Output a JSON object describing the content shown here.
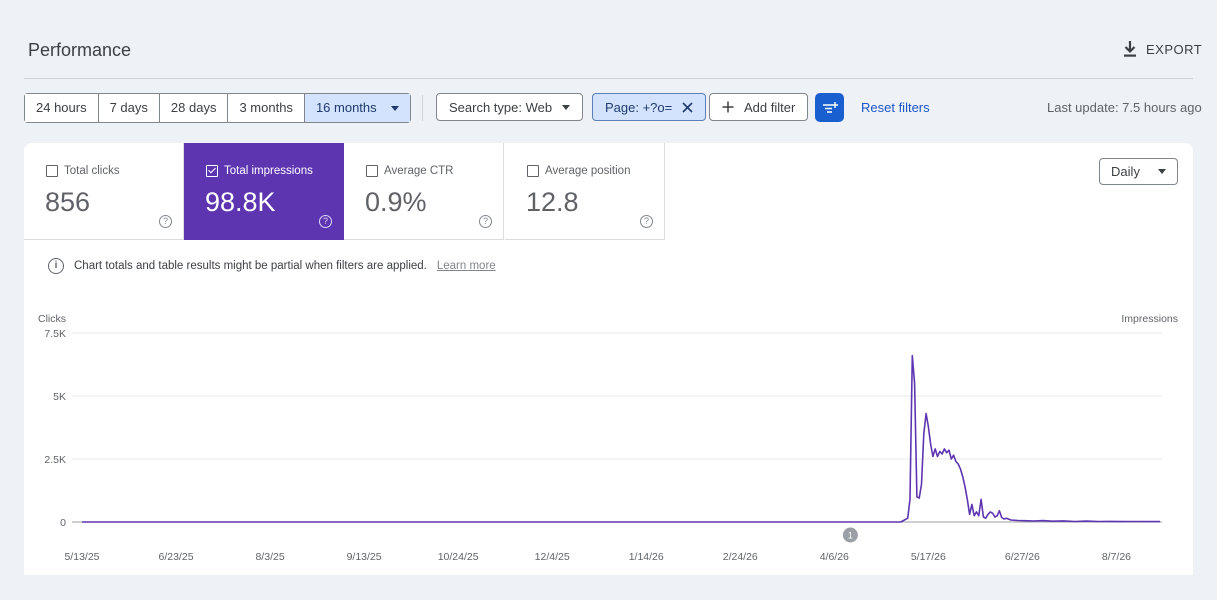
{
  "header": {
    "title": "Performance",
    "export_label": "EXPORT"
  },
  "date_ranges": [
    {
      "label": "24 hours",
      "active": false
    },
    {
      "label": "7 days",
      "active": false
    },
    {
      "label": "28 days",
      "active": false
    },
    {
      "label": "3 months",
      "active": false
    },
    {
      "label": "16 months",
      "active": true
    }
  ],
  "filters": {
    "search_type": "Search type: Web",
    "page": "Page: +?o=",
    "add_filter": "Add filter",
    "reset": "Reset filters",
    "last_update": "Last update: 7.5 hours ago"
  },
  "metrics": [
    {
      "label": "Total clicks",
      "value": "856",
      "checked": false
    },
    {
      "label": "Total impressions",
      "value": "98.8K",
      "checked": true
    },
    {
      "label": "Average CTR",
      "value": "0.9%",
      "checked": false
    },
    {
      "label": "Average position",
      "value": "12.8",
      "checked": false
    }
  ],
  "granularity": "Daily",
  "notice": {
    "text": "Chart totals and table results might be partial when filters are applied.",
    "link": "Learn more"
  },
  "colors": {
    "accent": "#5e35b1",
    "brand_blue": "#1a5fd0",
    "selected_chip": "#d3e3fd"
  },
  "chart_data": {
    "type": "line",
    "left_axis_label": "Clicks",
    "right_axis_label": "Impressions",
    "y_ticks": [
      "0",
      "2.5K",
      "5K",
      "7.5K"
    ],
    "ylim": [
      0,
      7500
    ],
    "x_ticks": [
      "5/13/25",
      "6/23/25",
      "8/3/25",
      "9/13/25",
      "10/24/25",
      "12/4/25",
      "1/14/26",
      "2/24/26",
      "4/6/26",
      "5/17/26",
      "6/27/26",
      "8/7/26"
    ],
    "x_start": "5/13/25",
    "x_end": "8/26/26",
    "annotation": {
      "date": "4/13/26",
      "label": "1"
    },
    "series": [
      {
        "color": "#5e35b1",
        "points": [
          [
            "5/13/25",
            0
          ],
          [
            "5/5/26",
            0
          ],
          [
            "5/8/26",
            150
          ],
          [
            "5/9/26",
            900
          ],
          [
            "5/10/26",
            6600
          ],
          [
            "5/11/26",
            5500
          ],
          [
            "5/12/26",
            1000
          ],
          [
            "5/13/26",
            950
          ],
          [
            "5/14/26",
            1500
          ],
          [
            "5/15/26",
            3500
          ],
          [
            "5/16/26",
            4300
          ],
          [
            "5/17/26",
            3800
          ],
          [
            "5/18/26",
            3100
          ],
          [
            "5/19/26",
            2600
          ],
          [
            "5/20/26",
            2900
          ],
          [
            "5/21/26",
            2600
          ],
          [
            "5/22/26",
            2800
          ],
          [
            "5/23/26",
            2700
          ],
          [
            "5/24/26",
            2900
          ],
          [
            "5/25/26",
            2750
          ],
          [
            "5/26/26",
            2850
          ],
          [
            "5/27/26",
            2500
          ],
          [
            "5/28/26",
            2650
          ],
          [
            "5/29/26",
            2400
          ],
          [
            "5/30/26",
            2300
          ],
          [
            "5/31/26",
            2100
          ],
          [
            "6/1/26",
            1800
          ],
          [
            "6/2/26",
            1400
          ],
          [
            "6/3/26",
            900
          ],
          [
            "6/4/26",
            300
          ],
          [
            "6/5/26",
            700
          ],
          [
            "6/6/26",
            250
          ],
          [
            "6/7/26",
            400
          ],
          [
            "6/8/26",
            250
          ],
          [
            "6/9/26",
            900
          ],
          [
            "6/10/26",
            200
          ],
          [
            "6/11/26",
            150
          ],
          [
            "6/12/26",
            300
          ],
          [
            "6/13/26",
            400
          ],
          [
            "6/14/26",
            350
          ],
          [
            "6/15/26",
            200
          ],
          [
            "6/16/26",
            250
          ],
          [
            "6/17/26",
            450
          ],
          [
            "6/18/26",
            180
          ],
          [
            "6/19/26",
            120
          ],
          [
            "6/20/26",
            150
          ],
          [
            "6/22/26",
            80
          ],
          [
            "6/25/26",
            60
          ],
          [
            "6/28/26",
            50
          ],
          [
            "7/2/26",
            40
          ],
          [
            "7/6/26",
            55
          ],
          [
            "7/10/26",
            30
          ],
          [
            "7/15/26",
            45
          ],
          [
            "7/20/26",
            20
          ],
          [
            "7/25/26",
            35
          ],
          [
            "7/30/26",
            20
          ],
          [
            "8/4/26",
            25
          ],
          [
            "8/10/26",
            15
          ],
          [
            "8/16/26",
            20
          ],
          [
            "8/22/26",
            15
          ],
          [
            "8/26/26",
            15
          ]
        ]
      }
    ]
  }
}
